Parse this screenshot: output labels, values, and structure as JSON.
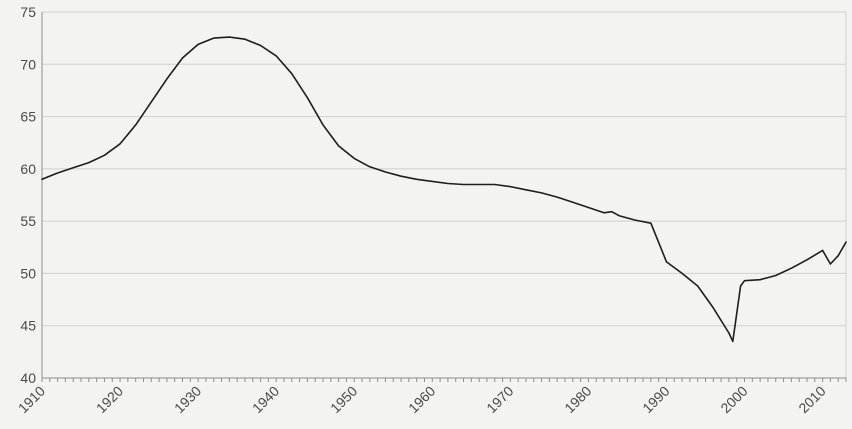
{
  "chart_data": {
    "type": "line",
    "title": "",
    "xlabel": "",
    "ylabel": "",
    "xlim": [
      1910,
      2013
    ],
    "ylim": [
      40,
      75
    ],
    "grid": true,
    "legend": "none",
    "colors": {
      "line": "#1e1e1e",
      "grid": "#cfcfcf",
      "axis": "#8c8c8c",
      "background": "#f3f3f1"
    },
    "x_ticks": [
      "1910",
      "1920",
      "1930",
      "1940",
      "1950",
      "1960",
      "1970",
      "1980",
      "1990",
      "2000",
      "2010"
    ],
    "y_ticks": [
      "40",
      "45",
      "50",
      "55",
      "60",
      "65",
      "70",
      "75"
    ],
    "series": [
      {
        "x": [
          1910,
          1912,
          1914,
          1916,
          1918,
          1920,
          1922,
          1924,
          1926,
          1928,
          1930,
          1932,
          1934,
          1936,
          1938,
          1940,
          1942,
          1944,
          1946,
          1948,
          1950,
          1952,
          1954,
          1956,
          1958,
          1960,
          1962,
          1964,
          1966,
          1968,
          1970,
          1972,
          1974,
          1976,
          1978,
          1980,
          1982,
          1983,
          1984,
          1986,
          1988,
          1990,
          1992,
          1994,
          1996,
          1998,
          1998.5,
          1999.5,
          2000,
          2002,
          2004,
          2006,
          2008,
          2010,
          2011,
          2012,
          2013
        ],
        "y": [
          59.0,
          59.6,
          60.1,
          60.6,
          61.3,
          62.4,
          64.2,
          66.4,
          68.6,
          70.6,
          71.9,
          72.5,
          72.6,
          72.4,
          71.8,
          70.8,
          69.1,
          66.8,
          64.2,
          62.2,
          61.0,
          60.2,
          59.7,
          59.3,
          59.0,
          58.8,
          58.6,
          58.5,
          58.5,
          58.5,
          58.3,
          58.0,
          57.7,
          57.3,
          56.8,
          56.3,
          55.8,
          55.9,
          55.5,
          55.1,
          54.8,
          51.1,
          50.0,
          48.8,
          46.7,
          44.3,
          43.5,
          48.8,
          49.3,
          49.4,
          49.8,
          50.5,
          51.3,
          52.2,
          50.9,
          51.7,
          53.0
        ]
      }
    ]
  }
}
